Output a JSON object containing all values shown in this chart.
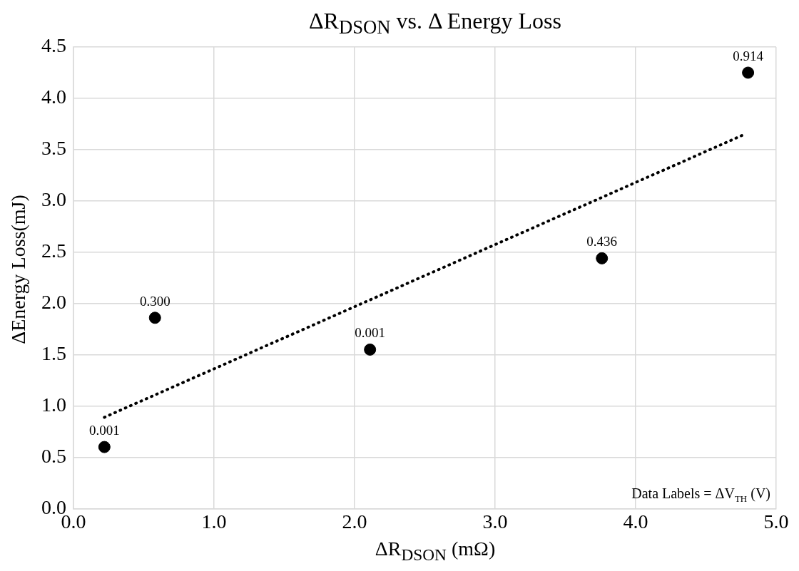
{
  "chart_data": {
    "type": "scatter",
    "title": "ΔR$_{DSON}$ vs. Δ Energy Loss",
    "xlabel": "ΔR$_{DSON}$ (mΩ)",
    "ylabel": "ΔEnergy Loss(mJ)",
    "annotations": [
      "Data Labels = ΔV$_{TH}$ (V)",
      {
        "text": "0.001",
        "x": 0.22,
        "y": 0.6
      },
      {
        "text": "0.300",
        "x": 0.58,
        "y": 1.86
      },
      {
        "text": "0.001",
        "x": 2.11,
        "y": 1.55
      },
      {
        "text": "0.436",
        "x": 3.76,
        "y": 2.44
      },
      {
        "text": "0.914",
        "x": 4.8,
        "y": 4.25
      }
    ],
    "xlim": [
      0,
      5
    ],
    "xticks": [
      {
        "value": 0,
        "label": "0.0"
      },
      {
        "value": 1,
        "label": "1.0"
      },
      {
        "value": 2,
        "label": "2.0"
      },
      {
        "value": 3,
        "label": "3.0"
      },
      {
        "value": 4,
        "label": "4.0"
      },
      {
        "value": 5,
        "label": "5.0"
      }
    ],
    "ylim": [
      0,
      4.5
    ],
    "yticks": [
      {
        "value": 0,
        "label": "0.0"
      },
      0.5,
      {
        "value": 1,
        "label": "1.0"
      },
      1.5,
      {
        "value": 2,
        "label": "2.0"
      },
      2.5,
      {
        "value": 3,
        "label": "3.0"
      },
      3.5,
      {
        "value": 4,
        "label": "4.0"
      },
      4.5
    ],
    "grid": true,
    "legend": false,
    "series": [
      {
        "color": "#000000",
        "marker": "circle",
        "x": [
          0.22,
          0.58,
          2.11,
          3.76,
          4.8
        ],
        "values": [
          0.6,
          1.86,
          1.55,
          2.44,
          4.25
        ]
      },
      {
        "type": "line",
        "color": "#000000",
        "line_style": "dotted",
        "marker": "none",
        "x": [
          0.22,
          4.76
        ],
        "values": [
          0.89,
          3.64
        ]
      }
    ]
  }
}
